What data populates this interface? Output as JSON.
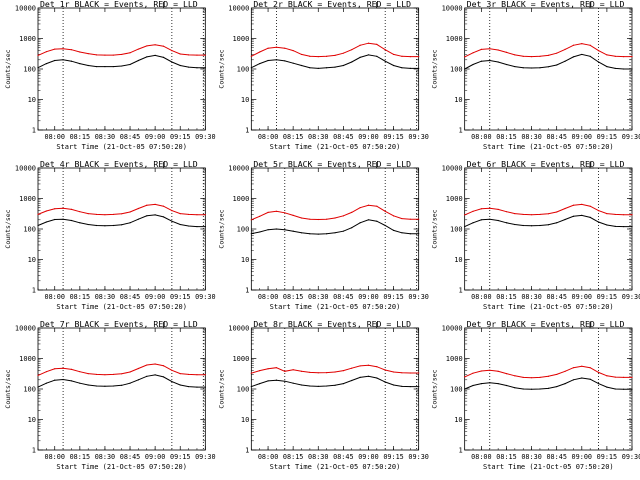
{
  "figure": {
    "background": "#ffffff"
  },
  "colors": {
    "events": "#000000",
    "lld": "#e00000",
    "axis": "#000000",
    "marker": "#000000"
  },
  "chart_data": [
    {
      "type": "line",
      "title": "Det 1r BLACK = Events, RED = LLD",
      "xlabel": "Start Time (21-Oct-05 07:50:20)",
      "ylabel": "Counts/sec",
      "yscale": "log",
      "x": [
        "07:50",
        "07:55",
        "08:00",
        "08:05",
        "08:10",
        "08:15",
        "08:20",
        "08:25",
        "08:30",
        "08:35",
        "08:40",
        "08:45",
        "08:50",
        "08:55",
        "09:00",
        "09:05",
        "09:10",
        "09:15",
        "09:20",
        "09:25",
        "09:30"
      ],
      "xticks": [
        "08:00",
        "08:15",
        "08:30",
        "08:45",
        "09:00",
        "09:15",
        "09:30"
      ],
      "ylim": [
        1,
        10000
      ],
      "yticks": [
        "1",
        "10",
        "100",
        "1000",
        "10000"
      ],
      "vlines": [
        "08:05",
        "09:10"
      ],
      "series": [
        {
          "color": "#000000",
          "values": [
            110,
            150,
            190,
            200,
            180,
            150,
            130,
            120,
            120,
            120,
            125,
            140,
            190,
            250,
            280,
            240,
            170,
            130,
            115,
            110,
            110
          ]
        },
        {
          "color": "#e00000",
          "values": [
            280,
            370,
            450,
            460,
            430,
            360,
            320,
            290,
            285,
            285,
            300,
            340,
            450,
            570,
            620,
            560,
            400,
            310,
            290,
            285,
            285
          ]
        }
      ]
    },
    {
      "type": "line",
      "title": "Det 2r BLACK = Events, RED = LLD",
      "xlabel": "Start Time (21-Oct-05 07:50:20)",
      "ylabel": "Counts/sec",
      "yscale": "log",
      "x": [
        "07:50",
        "07:55",
        "08:00",
        "08:05",
        "08:10",
        "08:15",
        "08:20",
        "08:25",
        "08:30",
        "08:35",
        "08:40",
        "08:45",
        "08:50",
        "08:55",
        "09:00",
        "09:05",
        "09:10",
        "09:15",
        "09:20",
        "09:25",
        "09:30"
      ],
      "xticks": [
        "08:00",
        "08:15",
        "08:30",
        "08:45",
        "09:00",
        "09:15",
        "09:30"
      ],
      "ylim": [
        1,
        10000
      ],
      "yticks": [
        "1",
        "10",
        "100",
        "1000",
        "10000"
      ],
      "vlines": [
        "08:05",
        "09:10"
      ],
      "series": [
        {
          "color": "#000000",
          "values": [
            110,
            150,
            190,
            200,
            185,
            155,
            130,
            110,
            105,
            110,
            115,
            130,
            170,
            240,
            290,
            260,
            180,
            130,
            110,
            105,
            105
          ]
        },
        {
          "color": "#e00000",
          "values": [
            260,
            360,
            480,
            520,
            480,
            400,
            300,
            260,
            255,
            260,
            280,
            330,
            430,
            600,
            700,
            640,
            430,
            300,
            260,
            255,
            255
          ]
        }
      ]
    },
    {
      "type": "line",
      "title": "Det 3r BLACK = Events, RED = LLD",
      "xlabel": "Start Time (21-Oct-05 07:50:20)",
      "ylabel": "Counts/sec",
      "yscale": "log",
      "x": [
        "07:50",
        "07:55",
        "08:00",
        "08:05",
        "08:10",
        "08:15",
        "08:20",
        "08:25",
        "08:30",
        "08:35",
        "08:40",
        "08:45",
        "08:50",
        "08:55",
        "09:00",
        "09:05",
        "09:10",
        "09:15",
        "09:20",
        "09:25",
        "09:30"
      ],
      "xticks": [
        "08:00",
        "08:15",
        "08:30",
        "08:45",
        "09:00",
        "09:15",
        "09:30"
      ],
      "ylim": [
        1,
        10000
      ],
      "yticks": [
        "1",
        "10",
        "100",
        "1000",
        "10000"
      ],
      "vlines": [
        "08:05",
        "09:10"
      ],
      "series": [
        {
          "color": "#000000",
          "values": [
            100,
            140,
            180,
            190,
            170,
            140,
            120,
            110,
            108,
            110,
            118,
            135,
            180,
            250,
            300,
            260,
            170,
            120,
            105,
            100,
            100
          ]
        },
        {
          "color": "#e00000",
          "values": [
            250,
            340,
            440,
            460,
            420,
            350,
            290,
            260,
            255,
            260,
            280,
            330,
            440,
            600,
            680,
            600,
            400,
            290,
            260,
            255,
            255
          ]
        }
      ]
    },
    {
      "type": "line",
      "title": "Det 4r BLACK = Events, RED = LLD",
      "xlabel": "Start Time (21-Oct-05 07:50:20)",
      "ylabel": "Counts/sec",
      "yscale": "log",
      "x": [
        "07:50",
        "07:55",
        "08:00",
        "08:05",
        "08:10",
        "08:15",
        "08:20",
        "08:25",
        "08:30",
        "08:35",
        "08:40",
        "08:45",
        "08:50",
        "08:55",
        "09:00",
        "09:05",
        "09:10",
        "09:15",
        "09:20",
        "09:25",
        "09:30"
      ],
      "xticks": [
        "08:00",
        "08:15",
        "08:30",
        "08:45",
        "09:00",
        "09:15",
        "09:30"
      ],
      "ylim": [
        1,
        10000
      ],
      "yticks": [
        "1",
        "10",
        "100",
        "1000",
        "10000"
      ],
      "vlines": [
        "08:05",
        "09:10"
      ],
      "series": [
        {
          "color": "#000000",
          "values": [
            130,
            170,
            205,
            210,
            190,
            160,
            140,
            130,
            128,
            130,
            138,
            160,
            210,
            270,
            290,
            250,
            180,
            140,
            125,
            120,
            120
          ]
        },
        {
          "color": "#e00000",
          "values": [
            300,
            390,
            460,
            480,
            440,
            370,
            320,
            300,
            295,
            300,
            315,
            360,
            470,
            600,
            640,
            560,
            400,
            320,
            300,
            295,
            295
          ]
        }
      ]
    },
    {
      "type": "line",
      "title": "Det 5r BLACK = Events, RED = LLD",
      "xlabel": "Start Time (21-Oct-05 07:50:20)",
      "ylabel": "Counts/sec",
      "yscale": "log",
      "x": [
        "07:50",
        "07:55",
        "08:00",
        "08:05",
        "08:10",
        "08:15",
        "08:20",
        "08:25",
        "08:30",
        "08:35",
        "08:40",
        "08:45",
        "08:50",
        "08:55",
        "09:00",
        "09:05",
        "09:10",
        "09:15",
        "09:20",
        "09:25",
        "09:30"
      ],
      "xticks": [
        "08:00",
        "08:15",
        "08:30",
        "08:45",
        "09:00",
        "09:15",
        "09:30"
      ],
      "ylim": [
        1,
        10000
      ],
      "yticks": [
        "1",
        "10",
        "100",
        "1000",
        "10000"
      ],
      "vlines": [
        "08:10",
        "09:10"
      ],
      "series": [
        {
          "color": "#000000",
          "values": [
            70,
            80,
            95,
            100,
            95,
            85,
            75,
            70,
            68,
            70,
            75,
            85,
            110,
            160,
            200,
            180,
            130,
            90,
            75,
            70,
            70
          ]
        },
        {
          "color": "#e00000",
          "values": [
            200,
            260,
            350,
            380,
            340,
            280,
            230,
            210,
            205,
            210,
            230,
            270,
            350,
            500,
            600,
            560,
            380,
            270,
            220,
            210,
            210
          ]
        }
      ]
    },
    {
      "type": "line",
      "title": "Det 6r BLACK = Events, RED = LLD",
      "xlabel": "Start Time (21-Oct-05 07:50:20)",
      "ylabel": "Counts/sec",
      "yscale": "log",
      "x": [
        "07:50",
        "07:55",
        "08:00",
        "08:05",
        "08:10",
        "08:15",
        "08:20",
        "08:25",
        "08:30",
        "08:35",
        "08:40",
        "08:45",
        "08:50",
        "08:55",
        "09:00",
        "09:05",
        "09:10",
        "09:15",
        "09:20",
        "09:25",
        "09:30"
      ],
      "xticks": [
        "08:00",
        "08:15",
        "08:30",
        "08:45",
        "09:00",
        "09:15",
        "09:30"
      ],
      "ylim": [
        1,
        10000
      ],
      "yticks": [
        "1",
        "10",
        "100",
        "1000",
        "10000"
      ],
      "vlines": [
        "08:05",
        "09:10"
      ],
      "series": [
        {
          "color": "#000000",
          "values": [
            120,
            160,
            200,
            210,
            190,
            160,
            140,
            130,
            128,
            130,
            138,
            160,
            205,
            260,
            280,
            240,
            170,
            135,
            122,
            120,
            120
          ]
        },
        {
          "color": "#e00000",
          "values": [
            290,
            380,
            460,
            480,
            440,
            370,
            320,
            300,
            295,
            300,
            315,
            360,
            470,
            600,
            640,
            560,
            400,
            320,
            300,
            295,
            295
          ]
        }
      ]
    },
    {
      "type": "line",
      "title": "Det 7r BLACK = Events, RED = LLD",
      "xlabel": "Start Time (21-Oct-05 07:50:20)",
      "ylabel": "Counts/sec",
      "yscale": "log",
      "x": [
        "07:50",
        "07:55",
        "08:00",
        "08:05",
        "08:10",
        "08:15",
        "08:20",
        "08:25",
        "08:30",
        "08:35",
        "08:40",
        "08:45",
        "08:50",
        "08:55",
        "09:00",
        "09:05",
        "09:10",
        "09:15",
        "09:20",
        "09:25",
        "09:30"
      ],
      "xticks": [
        "08:00",
        "08:15",
        "08:30",
        "08:45",
        "09:00",
        "09:15",
        "09:30"
      ],
      "ylim": [
        1,
        10000
      ],
      "yticks": [
        "1",
        "10",
        "100",
        "1000",
        "10000"
      ],
      "vlines": [
        "08:05",
        "09:10"
      ],
      "series": [
        {
          "color": "#000000",
          "values": [
            115,
            155,
            195,
            205,
            185,
            155,
            135,
            125,
            123,
            125,
            132,
            155,
            200,
            260,
            290,
            250,
            175,
            135,
            120,
            115,
            115
          ]
        },
        {
          "color": "#e00000",
          "values": [
            280,
            370,
            460,
            480,
            440,
            370,
            320,
            300,
            295,
            300,
            315,
            360,
            470,
            610,
            660,
            580,
            410,
            320,
            300,
            295,
            295
          ]
        }
      ]
    },
    {
      "type": "line",
      "title": "Det 8r BLACK = Events, RED = LLD",
      "xlabel": "Start Time (21-Oct-05 07:50:20)",
      "ylabel": "Counts/sec",
      "yscale": "log",
      "x": [
        "07:50",
        "07:55",
        "08:00",
        "08:05",
        "08:10",
        "08:15",
        "08:20",
        "08:25",
        "08:30",
        "08:35",
        "08:40",
        "08:45",
        "08:50",
        "08:55",
        "09:00",
        "09:05",
        "09:10",
        "09:15",
        "09:20",
        "09:25",
        "09:30"
      ],
      "xticks": [
        "08:00",
        "08:15",
        "08:30",
        "08:45",
        "09:00",
        "09:15",
        "09:30"
      ],
      "ylim": [
        1,
        10000
      ],
      "yticks": [
        "1",
        "10",
        "100",
        "1000",
        "10000"
      ],
      "vlines": [
        "08:10",
        "09:10"
      ],
      "series": [
        {
          "color": "#000000",
          "values": [
            120,
            150,
            185,
            195,
            180,
            155,
            135,
            125,
            122,
            125,
            132,
            150,
            190,
            240,
            260,
            230,
            170,
            135,
            122,
            120,
            120
          ]
        },
        {
          "color": "#e00000",
          "values": [
            330,
            400,
            460,
            500,
            380,
            430,
            380,
            350,
            340,
            345,
            360,
            400,
            480,
            570,
            600,
            540,
            420,
            360,
            340,
            335,
            335
          ]
        }
      ]
    },
    {
      "type": "line",
      "title": "Det 9r BLACK = Events, RED = LLD",
      "xlabel": "Start Time (21-Oct-05 07:50:20)",
      "ylabel": "Counts/sec",
      "yscale": "log",
      "x": [
        "07:50",
        "07:55",
        "08:00",
        "08:05",
        "08:10",
        "08:15",
        "08:20",
        "08:25",
        "08:30",
        "08:35",
        "08:40",
        "08:45",
        "08:50",
        "08:55",
        "09:00",
        "09:05",
        "09:10",
        "09:15",
        "09:20",
        "09:25",
        "09:30"
      ],
      "xticks": [
        "08:00",
        "08:15",
        "08:30",
        "08:45",
        "09:00",
        "09:15",
        "09:30"
      ],
      "ylim": [
        1,
        10000
      ],
      "yticks": [
        "1",
        "10",
        "100",
        "1000",
        "10000"
      ],
      "vlines": [
        "08:05",
        "09:10"
      ],
      "series": [
        {
          "color": "#000000",
          "values": [
            100,
            130,
            150,
            160,
            150,
            130,
            110,
            100,
            98,
            100,
            105,
            120,
            150,
            200,
            230,
            210,
            150,
            115,
            100,
            98,
            98
          ]
        },
        {
          "color": "#e00000",
          "values": [
            250,
            330,
            390,
            410,
            380,
            320,
            270,
            240,
            235,
            240,
            260,
            300,
            380,
            500,
            560,
            500,
            350,
            270,
            245,
            240,
            240
          ]
        }
      ]
    }
  ]
}
